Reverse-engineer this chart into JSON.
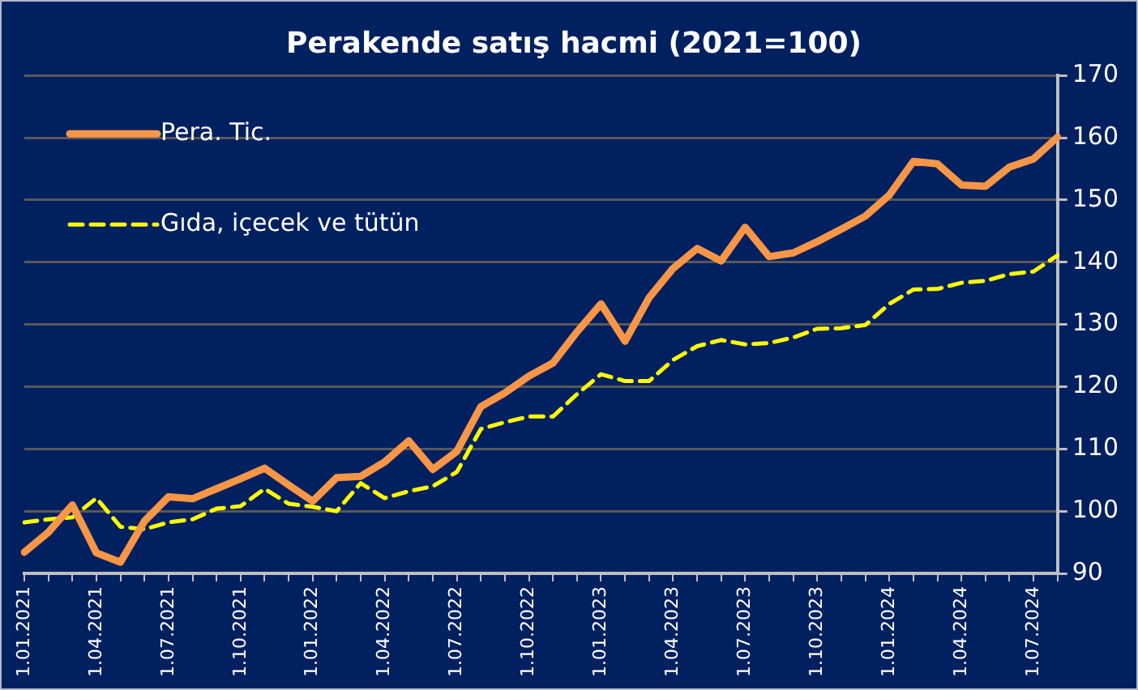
{
  "chart_data": {
    "type": "line",
    "title": "Perakende satış hacmi (2021=100)",
    "categories": [
      "1.01.2021",
      null,
      null,
      "1.04.2021",
      null,
      null,
      "1.07.2021",
      null,
      null,
      "1.10.2021",
      null,
      null,
      "1.01.2022",
      null,
      null,
      "1.04.2022",
      null,
      null,
      "1.07.2022",
      null,
      null,
      "1.10.2022",
      null,
      null,
      "1.01.2023",
      null,
      null,
      "1.04.2023",
      null,
      null,
      "1.07.2023",
      null,
      null,
      "1.10.2023",
      null,
      null,
      "1.01.2024",
      null,
      null,
      "1.04.2024",
      null,
      null,
      "1.07.2024",
      null
    ],
    "series": [
      {
        "name": "Pera. Tic.",
        "color": "#f79646",
        "line_style": "solid",
        "values": [
          93.4,
          96.6,
          101.0,
          93.3,
          91.8,
          98.4,
          102.3,
          102.0,
          103.6,
          105.2,
          106.9,
          104.2,
          101.6,
          105.4,
          105.6,
          107.9,
          111.3,
          106.7,
          109.6,
          116.8,
          119.0,
          121.7,
          123.8,
          128.8,
          133.3,
          127.3,
          134.3,
          139.0,
          142.2,
          140.2,
          145.6,
          140.9,
          141.5,
          143.3,
          145.3,
          147.4,
          150.8,
          156.2,
          155.8,
          152.4,
          152.2,
          155.3,
          156.6,
          160.1
        ]
      },
      {
        "name": "Gıda, içecek ve tütün",
        "color": "#ffff00",
        "line_style": "dashed",
        "values": [
          98.2,
          98.7,
          99.0,
          102.1,
          97.5,
          97.1,
          98.2,
          98.7,
          100.4,
          100.8,
          103.6,
          101.2,
          100.7,
          100.0,
          104.5,
          102.1,
          103.2,
          104.0,
          106.3,
          113.2,
          114.3,
          115.2,
          115.2,
          118.8,
          122.0,
          120.9,
          120.9,
          124.3,
          126.5,
          127.5,
          126.8,
          127.0,
          127.9,
          129.3,
          129.4,
          129.9,
          133.3,
          135.6,
          135.7,
          136.7,
          137.0,
          138.1,
          138.5,
          141.1
        ]
      }
    ],
    "ylim": [
      90,
      170
    ],
    "yticks": [
      90,
      100,
      110,
      120,
      130,
      140,
      150,
      160,
      170
    ],
    "grid": "y",
    "legend": "top left",
    "marker": "none"
  }
}
